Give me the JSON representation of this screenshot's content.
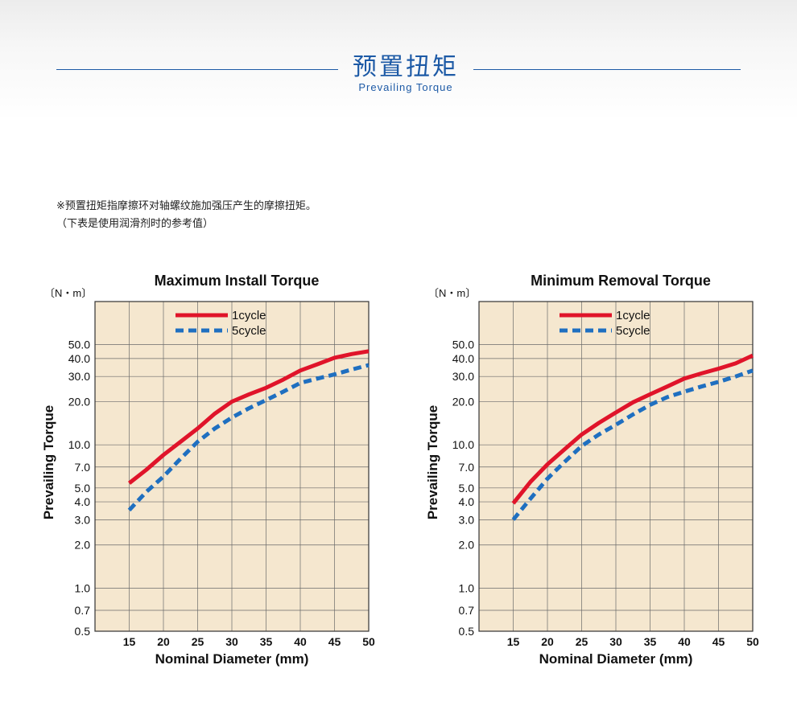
{
  "header": {
    "title": "预置扭矩",
    "subtitle": "Prevailing Torque"
  },
  "notes": [
    "※预置扭矩指摩擦环对轴螺纹施加强压产生的摩擦扭矩。",
    "（下表是使用润滑剂时的参考值）"
  ],
  "colors": {
    "accent": "#1d5aa6",
    "plot_bg": "#f5e7cf",
    "series_1cycle": "#e0142a",
    "series_5cycle": "#1f6fc0"
  },
  "chart_data": [
    {
      "type": "line",
      "title": "Maximum Install Torque",
      "unit": "〔N・m〕",
      "xlabel": "Nominal Diameter (mm)",
      "ylabel": "Prevailing Torque",
      "xlim": [
        10,
        50
      ],
      "ylim": [
        0.5,
        100
      ],
      "yscale": "log",
      "xticks": [
        15,
        20,
        25,
        30,
        35,
        40,
        45,
        50
      ],
      "xtick_labels": [
        "15",
        "20",
        "25",
        "30",
        "35",
        "40",
        "45",
        "50"
      ],
      "yticks": [
        0.5,
        0.7,
        1.0,
        2.0,
        3.0,
        4.0,
        5.0,
        7.0,
        10.0,
        20.0,
        30.0,
        40.0,
        50.0
      ],
      "ytick_labels": [
        "0.5",
        "0.7",
        "1.0",
        "2.0",
        "3.0",
        "4.0",
        "5.0",
        "7.0",
        "10.0",
        "20.0",
        "30.0",
        "40.0",
        "50.0"
      ],
      "grid": true,
      "legend": "top-center",
      "series": [
        {
          "name": "1cycle",
          "style": "solid",
          "x": [
            15,
            17.5,
            20,
            22.5,
            25,
            27.5,
            30,
            32.5,
            35,
            37.5,
            40,
            42.5,
            45,
            47.5,
            50
          ],
          "y": [
            5.4,
            6.7,
            8.5,
            10.5,
            13.0,
            16.5,
            20.0,
            22.5,
            25.0,
            28.5,
            33.0,
            36.5,
            40.5,
            43.0,
            45.0
          ]
        },
        {
          "name": "5cycle",
          "style": "dashed",
          "x": [
            15,
            17.5,
            20,
            22.5,
            25,
            27.5,
            30,
            32.5,
            35,
            37.5,
            40,
            42.5,
            45,
            47.5,
            50
          ],
          "y": [
            3.5,
            4.7,
            6.0,
            8.0,
            10.5,
            13.0,
            15.5,
            18.0,
            20.5,
            23.5,
            27.0,
            29.0,
            31.0,
            33.5,
            36.0
          ]
        }
      ]
    },
    {
      "type": "line",
      "title": "Minimum Removal Torque",
      "unit": "〔N・m〕",
      "xlabel": "Nominal Diameter (mm)",
      "ylabel": "Prevailing Torque",
      "xlim": [
        10,
        50
      ],
      "ylim": [
        0.5,
        100
      ],
      "yscale": "log",
      "xticks": [
        15,
        20,
        25,
        30,
        35,
        40,
        45,
        50
      ],
      "xtick_labels": [
        "15",
        "20",
        "25",
        "30",
        "35",
        "40",
        "45",
        "50"
      ],
      "yticks": [
        0.5,
        0.7,
        1.0,
        2.0,
        3.0,
        4.0,
        5.0,
        7.0,
        10.0,
        20.0,
        30.0,
        40.0,
        50.0
      ],
      "ytick_labels": [
        "0.5",
        "0.7",
        "1.0",
        "2.0",
        "3.0",
        "4.0",
        "5.0",
        "7.0",
        "10.0",
        "20.0",
        "30.0",
        "40.0",
        "50.0"
      ],
      "grid": true,
      "legend": "top-center",
      "series": [
        {
          "name": "1cycle",
          "style": "solid",
          "x": [
            15,
            17.5,
            20,
            22.5,
            25,
            27.5,
            30,
            32.5,
            35,
            37.5,
            40,
            42.5,
            45,
            47.5,
            50
          ],
          "y": [
            3.9,
            5.5,
            7.3,
            9.3,
            11.8,
            14.2,
            16.8,
            19.8,
            22.5,
            25.5,
            29.0,
            31.5,
            34.0,
            37.0,
            42.0
          ]
        },
        {
          "name": "5cycle",
          "style": "dashed",
          "x": [
            15,
            17.5,
            20,
            22.5,
            25,
            27.5,
            30,
            32.5,
            35,
            37.5,
            40,
            42.5,
            45,
            47.5,
            50
          ],
          "y": [
            3.0,
            4.2,
            5.8,
            7.6,
            9.8,
            11.8,
            13.8,
            16.3,
            19.0,
            21.5,
            23.5,
            25.5,
            27.5,
            30.0,
            33.0
          ]
        }
      ]
    }
  ]
}
